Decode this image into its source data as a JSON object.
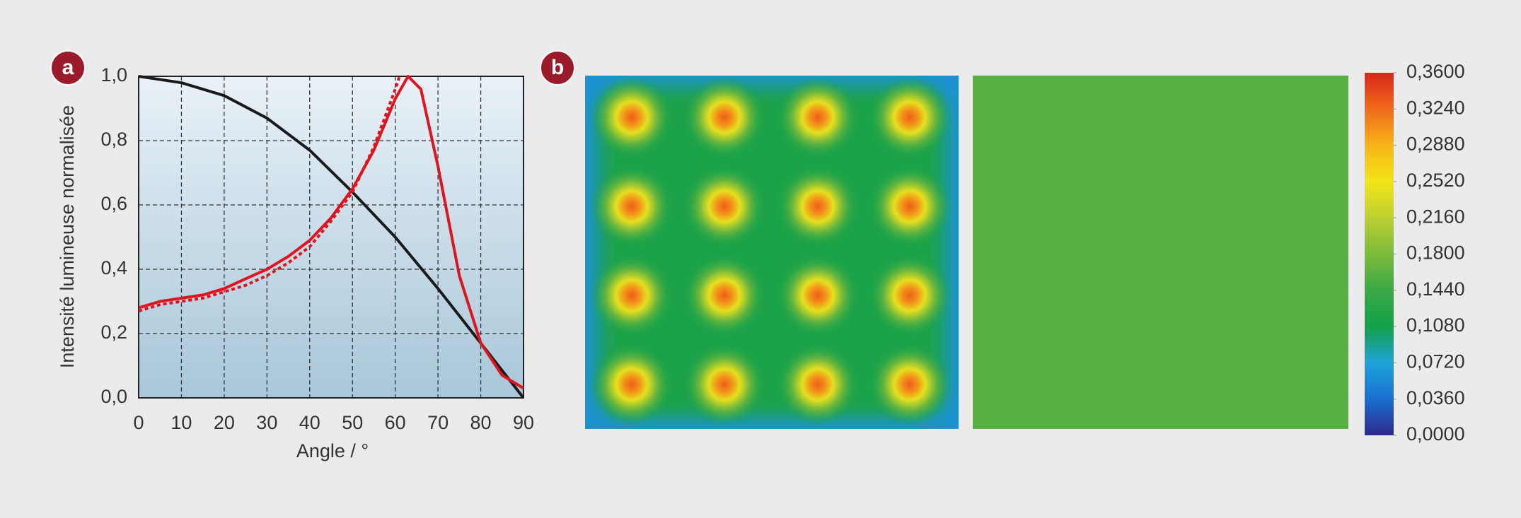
{
  "chart_data": [
    {
      "type": "line",
      "panel_label": "a",
      "x_label": "Angle / °",
      "y_label": "Intensité lumineuse normalisée",
      "xlim": [
        0,
        90
      ],
      "ylim": [
        0,
        1
      ],
      "xticks": [
        0,
        10,
        20,
        30,
        40,
        50,
        60,
        70,
        80,
        90
      ],
      "yticks": [
        {
          "value": 0,
          "label": "0,0"
        },
        {
          "value": 0.2,
          "label": "0,2"
        },
        {
          "value": 0.4,
          "label": "0,4"
        },
        {
          "value": 0.6,
          "label": "0,6"
        },
        {
          "value": 0.8,
          "label": "0,8"
        },
        {
          "value": 1,
          "label": "1,0"
        }
      ],
      "grid": true,
      "series": [
        {
          "color": "#1a1a1a",
          "dashed": false,
          "x": [
            0,
            10,
            20,
            30,
            40,
            50,
            60,
            70,
            80,
            90
          ],
          "values": [
            1.0,
            0.98,
            0.94,
            0.87,
            0.77,
            0.64,
            0.5,
            0.34,
            0.17,
            0.0
          ]
        },
        {
          "color": "#e0141e",
          "dashed": false,
          "x": [
            0,
            5,
            10,
            15,
            20,
            25,
            30,
            35,
            40,
            45,
            50,
            55,
            60,
            63,
            66,
            70,
            75,
            80,
            85,
            90
          ],
          "values": [
            0.28,
            0.3,
            0.31,
            0.32,
            0.34,
            0.37,
            0.4,
            0.44,
            0.49,
            0.56,
            0.65,
            0.77,
            0.93,
            1.0,
            0.96,
            0.72,
            0.38,
            0.17,
            0.07,
            0.03
          ]
        },
        {
          "color": "#e0141e",
          "dashed": true,
          "x": [
            0,
            5,
            10,
            15,
            20,
            25,
            30,
            35,
            40,
            45,
            50,
            55,
            60,
            61
          ],
          "values": [
            0.27,
            0.29,
            0.3,
            0.31,
            0.33,
            0.35,
            0.38,
            0.42,
            0.47,
            0.55,
            0.64,
            0.78,
            0.96,
            1.0
          ]
        }
      ]
    },
    {
      "type": "heatmap",
      "panel_label": "b",
      "vlim": [
        0,
        0.36
      ],
      "colors": [
        "#2c2a8a",
        "#1a6fd0",
        "#1ea3d8",
        "#12a24a",
        "#3aa845",
        "#7cbb3b",
        "#bcd030",
        "#f2e51a",
        "#f7b518",
        "#f06a1a",
        "#d9261c"
      ],
      "ticks": [
        {
          "value": 0,
          "label": "0,0000"
        },
        {
          "value": 0.036,
          "label": "0,0360"
        },
        {
          "value": 0.072,
          "label": "0,0720"
        },
        {
          "value": 0.108,
          "label": "0,1080"
        },
        {
          "value": 0.144,
          "label": "0,1440"
        },
        {
          "value": 0.18,
          "label": "0,1800"
        },
        {
          "value": 0.216,
          "label": "0,2160"
        },
        {
          "value": 0.252,
          "label": "0,2520"
        },
        {
          "value": 0.288,
          "label": "0,2880"
        },
        {
          "value": 0.324,
          "label": "0,3240"
        },
        {
          "value": 0.36,
          "label": "0,3600"
        }
      ],
      "maps": [
        {
          "edge": 0.06,
          "background": 0.115,
          "spots": [
            [
              0.33,
              0.33,
              0.33,
              0.33
            ],
            [
              0.33,
              0.33,
              0.33,
              0.33
            ],
            [
              0.33,
              0.33,
              0.33,
              0.33
            ],
            [
              0.33,
              0.33,
              0.33,
              0.33
            ]
          ]
        },
        {
          "uniform": 0.16
        }
      ]
    }
  ]
}
